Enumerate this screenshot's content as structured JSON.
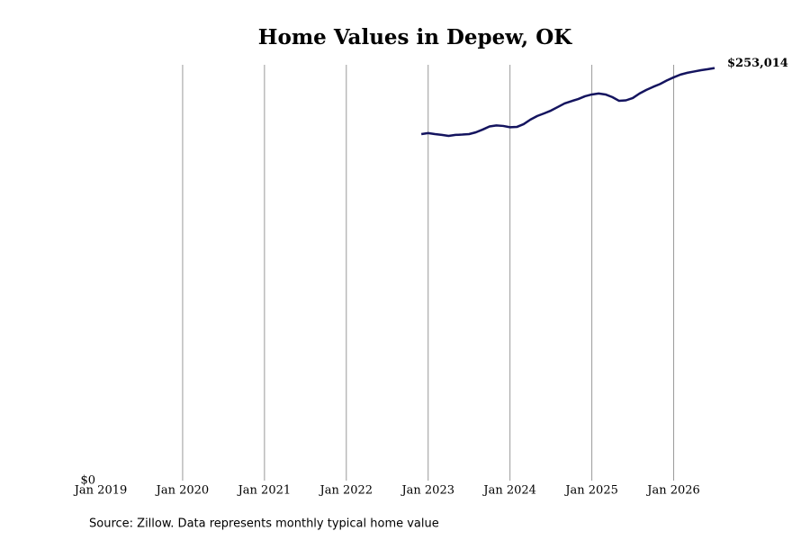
{
  "chart_data": {
    "type": "line",
    "title": "Home Values in Depew, OK",
    "source": "Source: Zillow. Data represents monthly typical home value",
    "x": [
      "2022-12",
      "2023-01",
      "2023-02",
      "2023-03",
      "2023-04",
      "2023-05",
      "2023-06",
      "2023-07",
      "2023-08",
      "2023-09",
      "2023-10",
      "2023-11",
      "2023-12",
      "2024-01",
      "2024-02",
      "2024-03",
      "2024-04",
      "2024-05",
      "2024-06",
      "2024-07",
      "2024-08",
      "2024-09",
      "2024-10",
      "2024-11",
      "2024-12",
      "2025-01",
      "2025-02",
      "2025-03",
      "2025-04",
      "2025-05",
      "2025-06",
      "2025-07",
      "2025-08",
      "2025-09",
      "2025-10",
      "2025-11",
      "2025-12",
      "2026-01",
      "2026-02",
      "2026-03",
      "2026-04",
      "2026-05",
      "2026-06",
      "2026-07"
    ],
    "series": [
      {
        "name": "Home value",
        "color": "#14145f",
        "values": [
          212500,
          213100,
          212500,
          212000,
          211400,
          212000,
          212200,
          212500,
          213600,
          215300,
          217200,
          217800,
          217500,
          216700,
          216900,
          218600,
          221400,
          223600,
          225200,
          226900,
          229100,
          231300,
          232700,
          234000,
          235700,
          236800,
          237400,
          236800,
          235200,
          232900,
          233200,
          234600,
          237400,
          239600,
          241500,
          243200,
          245400,
          247300,
          249000,
          250100,
          250900,
          251700,
          252300,
          253014
        ]
      }
    ],
    "last_value_label": "$253,014",
    "xlim": [
      "2019-01",
      "2026-07"
    ],
    "xticks": [
      {
        "value": "2019-01",
        "label": "Jan 2019"
      },
      {
        "value": "2020-01",
        "label": "Jan 2020"
      },
      {
        "value": "2021-01",
        "label": "Jan 2021"
      },
      {
        "value": "2022-01",
        "label": "Jan 2022"
      },
      {
        "value": "2023-01",
        "label": "Jan 2023"
      },
      {
        "value": "2024-01",
        "label": "Jan 2024"
      },
      {
        "value": "2025-01",
        "label": "Jan 2025"
      },
      {
        "value": "2026-01",
        "label": "Jan 2026"
      }
    ],
    "ylim": [
      0,
      255000
    ],
    "yticks": [
      {
        "value": 0,
        "label": "$0"
      }
    ],
    "grid": true
  }
}
